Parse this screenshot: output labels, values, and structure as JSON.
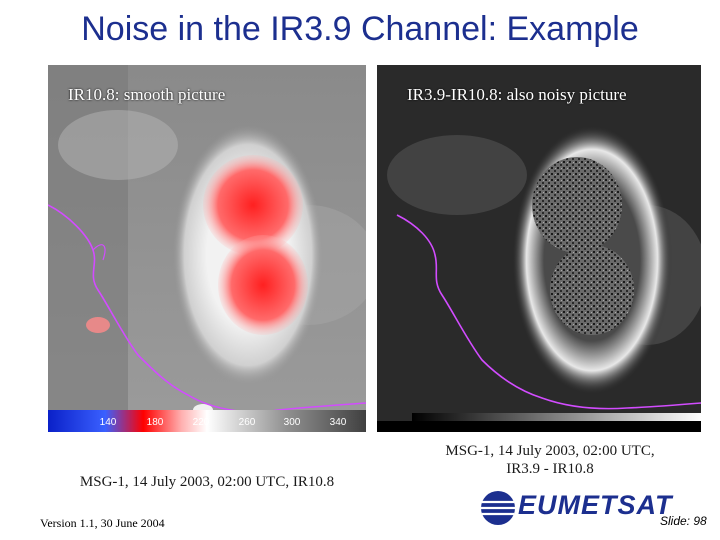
{
  "title": "Noise in the IR3.9 Channel: Example",
  "left_panel": {
    "label": "IR10.8: smooth picture",
    "colorbar_ticks": [
      "140",
      "180",
      "220",
      "260",
      "300",
      "340"
    ],
    "caption": "MSG-1, 14 July 2003, 02:00 UTC, IR10.8"
  },
  "right_panel": {
    "label": "IR3.9-IR10.8: also noisy picture",
    "caption_line1": "MSG-1, 14 July 2003, 02:00 UTC,",
    "caption_line2": "IR3.9 - IR10.8"
  },
  "footer": {
    "version": "Version 1.1, 30 June 2004",
    "logo_text": "EUMETSAT",
    "slide": "Slide: 98"
  },
  "colors": {
    "title": "#1c2f8f",
    "coastline": "#d24cff",
    "cold_cloud": "#ff2b2b"
  }
}
